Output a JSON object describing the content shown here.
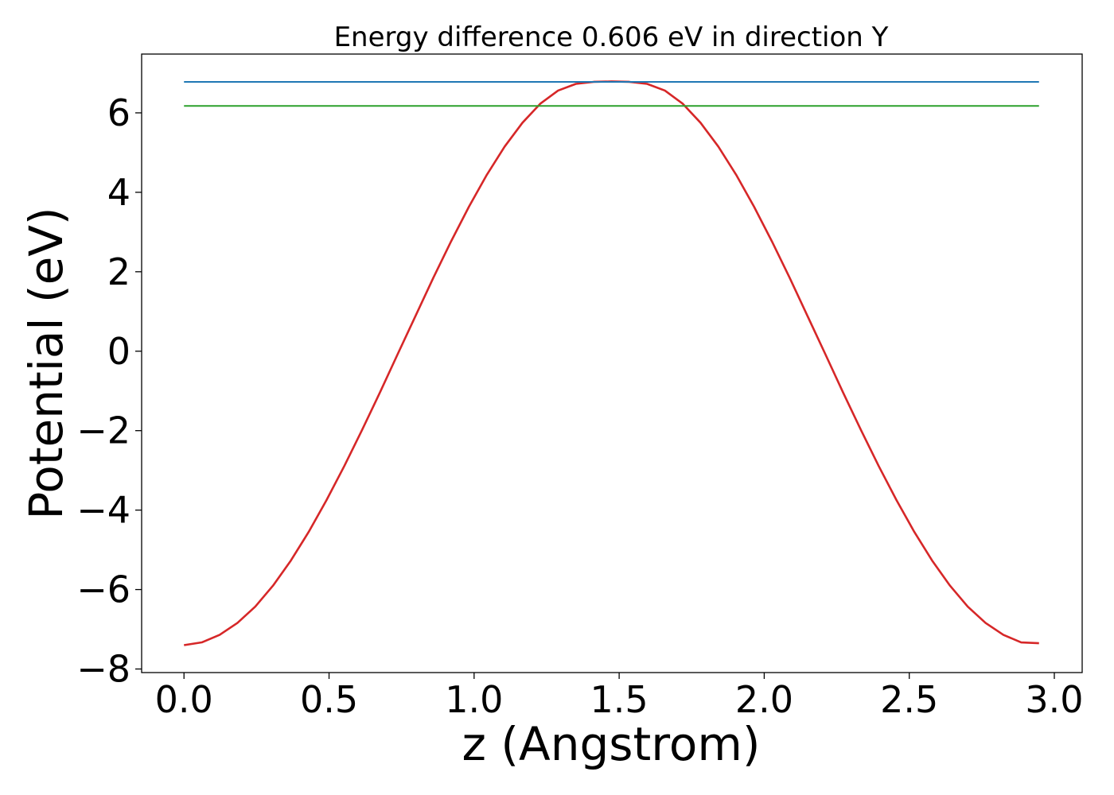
{
  "chart_data": {
    "type": "line",
    "title": "Energy difference 0.606 eV in direction Y",
    "xlabel": "z (Angstrom)",
    "ylabel": "Potential (eV)",
    "xlim": [
      -0.146,
      3.096
    ],
    "ylim": [
      -8.09,
      7.48
    ],
    "xticks": [
      0.0,
      0.5,
      1.0,
      1.5,
      2.0,
      2.5,
      3.0
    ],
    "xtick_labels": [
      "0.0",
      "0.5",
      "1.0",
      "1.5",
      "2.0",
      "2.5",
      "3.0"
    ],
    "yticks": [
      -8,
      -6,
      -4,
      -2,
      0,
      2,
      4,
      6
    ],
    "ytick_labels": [
      "−8",
      "−6",
      "−4",
      "−2",
      "0",
      "2",
      "4",
      "6"
    ],
    "grid": false,
    "series": [
      {
        "color": "#d62728",
        "x": [
          0.0,
          0.0614,
          0.1228,
          0.1842,
          0.2456,
          0.307,
          0.3684,
          0.4298,
          0.4912,
          0.5526,
          0.614,
          0.6754,
          0.7368,
          0.7982,
          0.8596,
          0.921,
          0.9824,
          1.0438,
          1.1052,
          1.1666,
          1.228,
          1.2894,
          1.3508,
          1.4122,
          1.4736,
          1.535,
          1.5964,
          1.6578,
          1.7192,
          1.7806,
          1.842,
          1.9034,
          1.9648,
          2.0262,
          2.0876,
          2.149,
          2.2104,
          2.2718,
          2.3332,
          2.3946,
          2.456,
          2.5174,
          2.5788,
          2.6402,
          2.7016,
          2.763,
          2.8244,
          2.8858,
          2.9472
        ],
        "y": [
          -7.4,
          -7.33,
          -7.14,
          -6.84,
          -6.43,
          -5.9,
          -5.27,
          -4.55,
          -3.75,
          -2.89,
          -1.98,
          -1.04,
          -0.07,
          0.89,
          1.85,
          2.77,
          3.64,
          4.44,
          5.15,
          5.75,
          6.23,
          6.56,
          6.73,
          6.78,
          6.79,
          6.78,
          6.73,
          6.56,
          6.23,
          5.75,
          5.15,
          4.44,
          3.64,
          2.77,
          1.85,
          0.89,
          -0.07,
          -1.04,
          -1.98,
          -2.89,
          -3.75,
          -4.55,
          -5.27,
          -5.9,
          -6.43,
          -6.84,
          -7.14,
          -7.33,
          -7.35
        ]
      },
      {
        "color": "#1f77b4",
        "x": [
          0.0,
          2.9472
        ],
        "y": [
          6.78,
          6.78
        ]
      },
      {
        "color": "#2ca02c",
        "x": [
          0.0,
          2.9472
        ],
        "y": [
          6.174,
          6.174
        ]
      }
    ]
  }
}
